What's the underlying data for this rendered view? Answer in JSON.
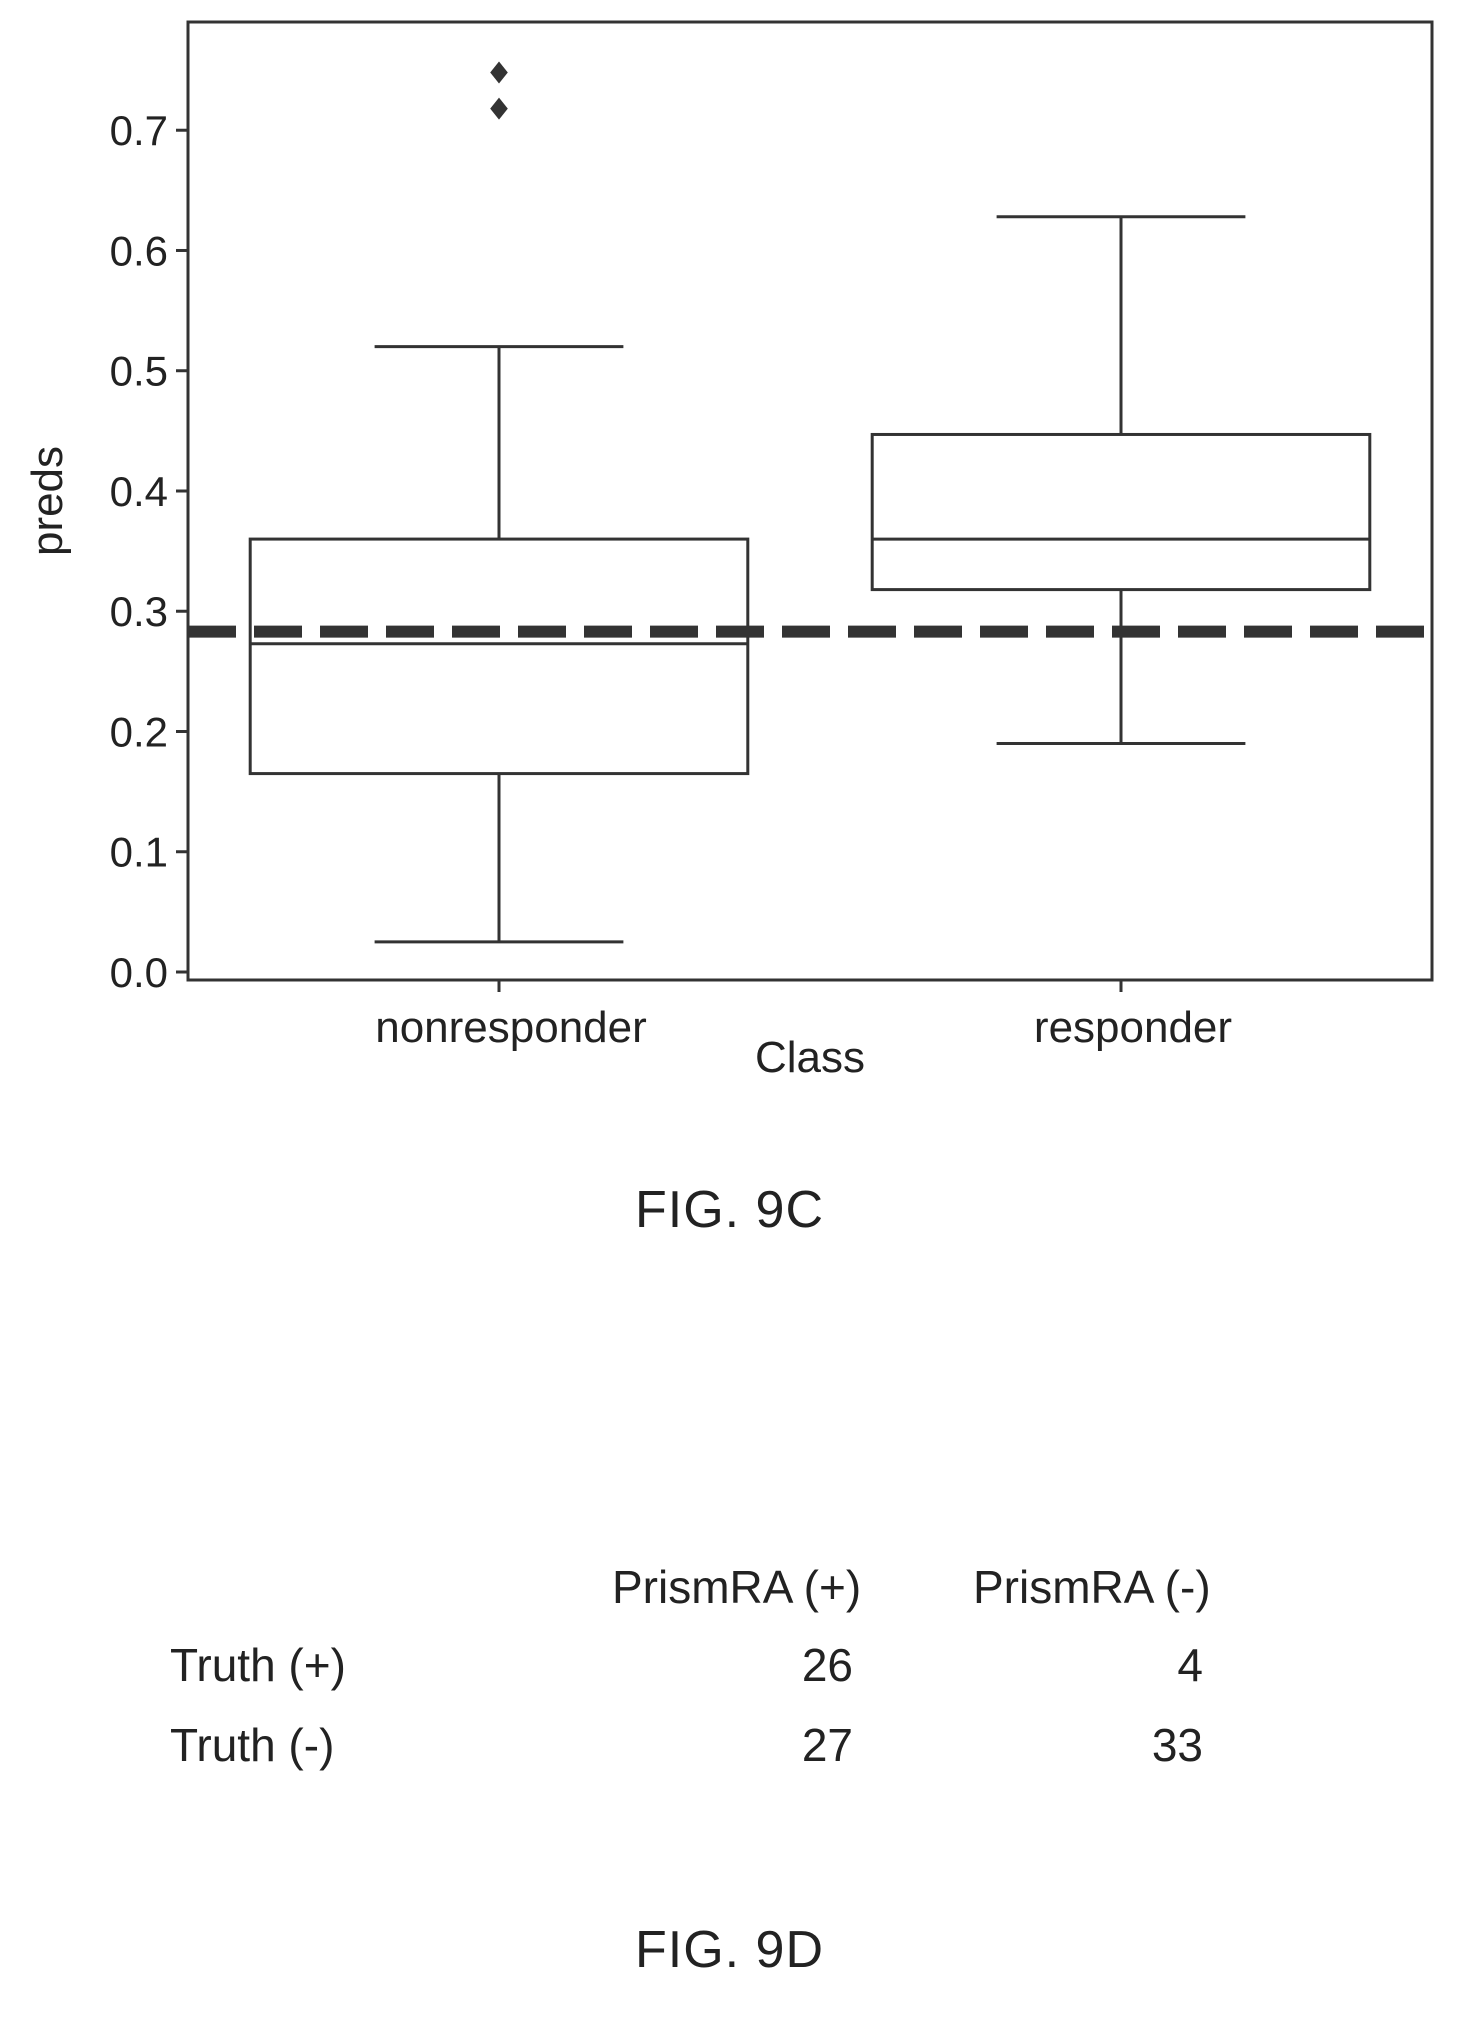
{
  "figures": {
    "fig_9c_caption": "FIG. 9C",
    "fig_9d_caption": "FIG. 9D"
  },
  "chart_data": {
    "type": "box",
    "title": "",
    "xlabel": "Class",
    "ylabel": "preds",
    "ylim": [
      0.0,
      0.79
    ],
    "yticks": [
      "0.0",
      "0.1",
      "0.2",
      "0.3",
      "0.4",
      "0.5",
      "0.6",
      "0.7"
    ],
    "categories": [
      "nonresponder",
      "responder"
    ],
    "boxes": [
      {
        "category": "nonresponder",
        "whisker_low": 0.025,
        "q1": 0.165,
        "median": 0.273,
        "q3": 0.36,
        "whisker_high": 0.52,
        "outliers": [
          0.718,
          0.748
        ]
      },
      {
        "category": "responder",
        "whisker_low": 0.19,
        "q1": 0.318,
        "median": 0.36,
        "q3": 0.447,
        "whisker_high": 0.628,
        "outliers": []
      }
    ],
    "threshold": 0.283,
    "grid": false,
    "legend": "none"
  },
  "table": {
    "columns": [
      "PrismRA (+)",
      "PrismRA (-)"
    ],
    "rows": [
      {
        "label": "Truth (+)",
        "values": [
          "26",
          "4"
        ]
      },
      {
        "label": "Truth (-)",
        "values": [
          "27",
          "33"
        ]
      }
    ]
  }
}
